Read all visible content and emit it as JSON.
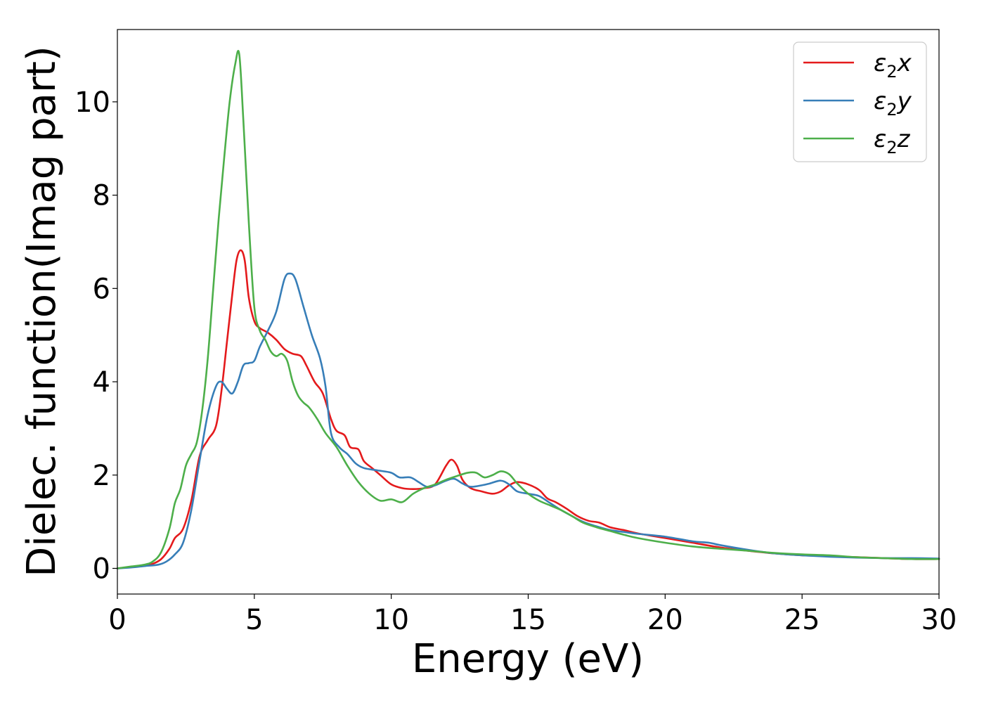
{
  "chart_data": {
    "type": "line",
    "xlabel": "Energy (eV)",
    "ylabel": "Dielec. function(Imag part)",
    "xlim": [
      0,
      30
    ],
    "ylim": [
      -0.55,
      11.55
    ],
    "xticks": [
      0,
      5,
      10,
      15,
      20,
      25,
      30
    ],
    "yticks": [
      0,
      2,
      4,
      6,
      8,
      10
    ],
    "grid": false,
    "legend_position": "top-right",
    "series": [
      {
        "name": "ε₂x",
        "legend_base": "ε",
        "legend_sub": "2",
        "legend_suffix": "x",
        "color": "#e41a1c",
        "x": [
          0,
          0.5,
          1.0,
          1.3,
          1.6,
          1.9,
          2.1,
          2.4,
          2.7,
          3.0,
          3.3,
          3.6,
          3.8,
          4.0,
          4.2,
          4.35,
          4.5,
          4.65,
          4.8,
          5.0,
          5.2,
          5.5,
          5.8,
          6.1,
          6.4,
          6.7,
          6.9,
          7.2,
          7.5,
          7.8,
          8.0,
          8.3,
          8.5,
          8.8,
          9.0,
          9.3,
          9.6,
          10.0,
          10.4,
          10.8,
          11.2,
          11.6,
          12.0,
          12.2,
          12.4,
          12.6,
          12.9,
          13.3,
          13.7,
          14.0,
          14.3,
          14.6,
          15.0,
          15.4,
          15.7,
          16.0,
          16.4,
          16.8,
          17.2,
          17.6,
          18.0,
          18.5,
          19.0,
          20.0,
          21.0,
          22.0,
          23.0,
          24.0,
          25.0,
          26.0,
          27.0,
          28.0,
          29.0,
          30.0
        ],
        "y": [
          0.0,
          0.03,
          0.06,
          0.1,
          0.2,
          0.42,
          0.65,
          0.85,
          1.45,
          2.4,
          2.75,
          3.05,
          3.8,
          4.85,
          5.9,
          6.6,
          6.82,
          6.6,
          5.8,
          5.3,
          5.15,
          5.05,
          4.9,
          4.7,
          4.6,
          4.55,
          4.35,
          4.0,
          3.75,
          3.2,
          2.95,
          2.85,
          2.6,
          2.55,
          2.3,
          2.15,
          2.0,
          1.8,
          1.72,
          1.7,
          1.72,
          1.8,
          2.2,
          2.33,
          2.2,
          1.9,
          1.72,
          1.65,
          1.6,
          1.65,
          1.78,
          1.85,
          1.8,
          1.68,
          1.5,
          1.42,
          1.28,
          1.12,
          1.02,
          0.98,
          0.88,
          0.82,
          0.75,
          0.65,
          0.55,
          0.45,
          0.38,
          0.32,
          0.28,
          0.26,
          0.24,
          0.22,
          0.2,
          0.2
        ]
      },
      {
        "name": "ε₂y",
        "legend_base": "ε",
        "legend_sub": "2",
        "legend_suffix": "y",
        "color": "#377eb8",
        "x": [
          0,
          0.5,
          1.0,
          1.5,
          1.8,
          2.1,
          2.4,
          2.7,
          3.0,
          3.3,
          3.6,
          3.8,
          4.0,
          4.2,
          4.4,
          4.6,
          4.8,
          5.0,
          5.2,
          5.5,
          5.8,
          6.1,
          6.3,
          6.5,
          6.8,
          7.1,
          7.4,
          7.6,
          7.8,
          8.1,
          8.4,
          8.7,
          9.0,
          9.5,
          10.0,
          10.3,
          10.7,
          11.0,
          11.3,
          11.6,
          12.0,
          12.3,
          12.6,
          12.9,
          13.3,
          13.6,
          14.0,
          14.3,
          14.6,
          15.0,
          15.4,
          15.8,
          16.2,
          16.6,
          17.0,
          17.5,
          18.0,
          18.5,
          19.0,
          20.0,
          21.0,
          21.6,
          22.0,
          23.0,
          24.0,
          25.0,
          26.0,
          27.0,
          28.0,
          29.0,
          30.0
        ],
        "y": [
          0.0,
          0.02,
          0.05,
          0.08,
          0.15,
          0.3,
          0.55,
          1.25,
          2.3,
          3.3,
          3.9,
          4.0,
          3.85,
          3.75,
          4.0,
          4.35,
          4.4,
          4.45,
          4.75,
          5.1,
          5.5,
          6.2,
          6.32,
          6.2,
          5.6,
          5.0,
          4.5,
          3.9,
          2.9,
          2.6,
          2.45,
          2.25,
          2.15,
          2.1,
          2.05,
          1.95,
          1.95,
          1.85,
          1.75,
          1.78,
          1.88,
          1.92,
          1.82,
          1.75,
          1.78,
          1.82,
          1.88,
          1.8,
          1.65,
          1.6,
          1.55,
          1.4,
          1.25,
          1.12,
          1.0,
          0.9,
          0.82,
          0.78,
          0.74,
          0.68,
          0.58,
          0.55,
          0.5,
          0.4,
          0.32,
          0.28,
          0.25,
          0.23,
          0.22,
          0.22,
          0.21
        ]
      },
      {
        "name": "ε₂z",
        "legend_base": "ε",
        "legend_sub": "2",
        "legend_suffix": "z",
        "color": "#4daf4a",
        "x": [
          0,
          0.5,
          1.0,
          1.3,
          1.6,
          1.9,
          2.1,
          2.3,
          2.5,
          2.7,
          2.9,
          3.1,
          3.3,
          3.5,
          3.7,
          3.9,
          4.1,
          4.3,
          4.45,
          4.6,
          4.8,
          5.0,
          5.2,
          5.4,
          5.6,
          5.8,
          6.0,
          6.2,
          6.4,
          6.6,
          6.8,
          7.0,
          7.3,
          7.6,
          8.0,
          8.4,
          8.8,
          9.2,
          9.6,
          10.0,
          10.4,
          10.8,
          11.2,
          11.6,
          12.0,
          12.4,
          12.8,
          13.1,
          13.4,
          13.7,
          14.0,
          14.3,
          14.6,
          15.0,
          15.4,
          15.8,
          16.2,
          16.6,
          17.0,
          17.5,
          18.0,
          18.5,
          19.0,
          20.0,
          21.0,
          22.0,
          23.0,
          24.0,
          25.0,
          26.0,
          27.0,
          28.0,
          29.0,
          30.0
        ],
        "y": [
          0.0,
          0.04,
          0.08,
          0.15,
          0.35,
          0.85,
          1.4,
          1.7,
          2.2,
          2.45,
          2.7,
          3.4,
          4.5,
          6.0,
          7.5,
          8.8,
          10.0,
          10.8,
          11.02,
          9.6,
          7.4,
          5.6,
          5.1,
          4.9,
          4.65,
          4.55,
          4.6,
          4.45,
          4.0,
          3.7,
          3.55,
          3.45,
          3.2,
          2.9,
          2.6,
          2.2,
          1.85,
          1.6,
          1.45,
          1.48,
          1.42,
          1.6,
          1.72,
          1.8,
          1.9,
          1.98,
          2.05,
          2.05,
          1.95,
          2.0,
          2.08,
          2.02,
          1.82,
          1.6,
          1.45,
          1.35,
          1.25,
          1.12,
          0.98,
          0.88,
          0.8,
          0.72,
          0.65,
          0.55,
          0.47,
          0.42,
          0.38,
          0.33,
          0.3,
          0.28,
          0.24,
          0.22,
          0.2,
          0.2
        ]
      }
    ]
  }
}
